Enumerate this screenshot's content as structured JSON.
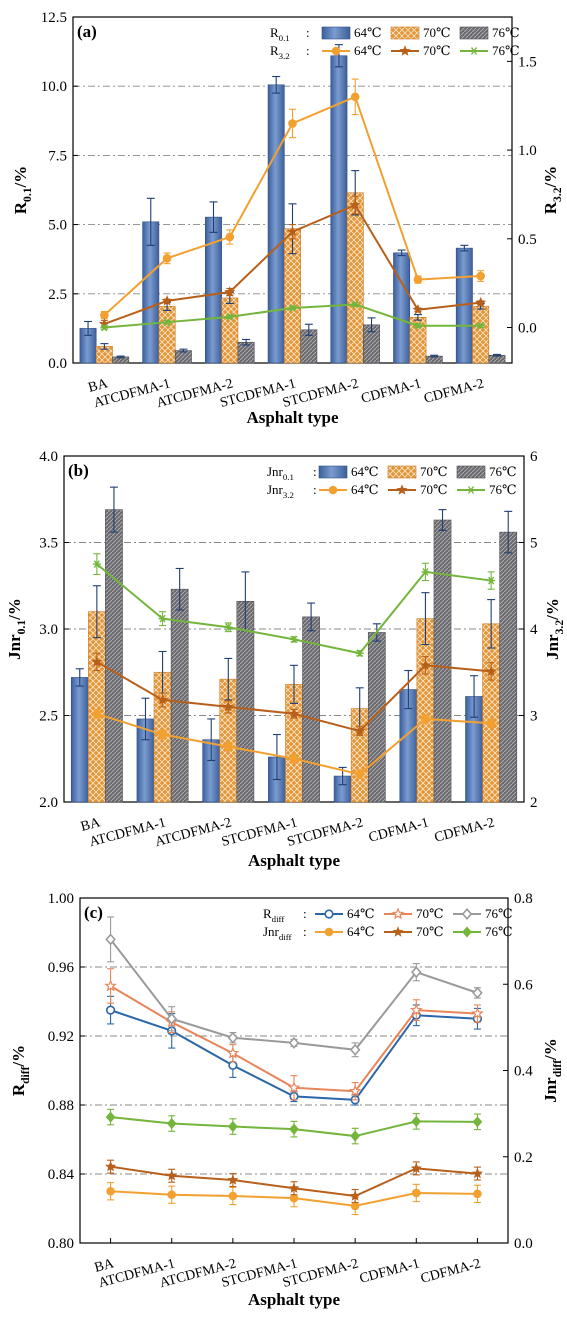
{
  "categories": [
    "BA",
    "ATCDFMA-1",
    "ATCDFMA-2",
    "STCDFMA-1",
    "STCDFMA-2",
    "CDFMA-1",
    "CDFMA-2"
  ],
  "colors": {
    "bar64": "#4f73b0",
    "bar70": "#e0912e",
    "bar76": "#6e6e72",
    "line64": "#f2a030",
    "line70": "#b8601b",
    "line76": "#74b53c",
    "rdiff64": "#2b66a8",
    "rdiff70": "#e8855a",
    "rdiff76": "#9a9a9a",
    "grid": "#888888"
  },
  "chart_data": [
    {
      "panel": "(a)",
      "type": "bar+line",
      "ylabel_main": "R",
      "ylabel_sub": "0.1",
      "ylabel_unit": "/%",
      "y2label_main": "R",
      "y2label_sub": "3.2",
      "y2label_unit": "/%",
      "xlabel": "Asphalt type",
      "ylim": [
        0,
        12.5
      ],
      "yticks": [
        0,
        2.5,
        5.0,
        7.5,
        10.0,
        12.5
      ],
      "ytick_labels": [
        "0.0",
        "2.5",
        "5.0",
        "7.5",
        "10.0",
        "12.5"
      ],
      "y2lim": [
        -0.2,
        1.75
      ],
      "y2ticks": [
        0.0,
        0.5,
        1.0,
        1.5
      ],
      "y2tick_labels": [
        "0.0",
        "0.5",
        "1.0",
        "1.5"
      ],
      "grid": "dash-dot horizontal",
      "legend_position": "top-right",
      "legend_bar_label_main": "R",
      "legend_bar_label_sub": "0.1",
      "legend_line_label_main": "R",
      "legend_line_label_sub": "3.2",
      "bars": [
        {
          "name": "64℃",
          "values": [
            1.25,
            5.1,
            5.27,
            10.05,
            11.1,
            3.98,
            4.15
          ],
          "errors": [
            0.25,
            0.85,
            0.55,
            0.3,
            0.4,
            0.1,
            0.1
          ]
        },
        {
          "name": "70℃",
          "values": [
            0.6,
            2.05,
            2.35,
            4.85,
            6.15,
            1.65,
            2.05
          ],
          "errors": [
            0.1,
            0.15,
            0.2,
            0.9,
            0.8,
            0.1,
            0.1
          ]
        },
        {
          "name": "76℃",
          "values": [
            0.22,
            0.45,
            0.75,
            1.2,
            1.38,
            0.25,
            0.28
          ],
          "errors": [
            0.03,
            0.05,
            0.1,
            0.2,
            0.25,
            0.03,
            0.03
          ]
        }
      ],
      "lines": [
        {
          "name": "64℃",
          "values": [
            0.07,
            0.39,
            0.51,
            1.15,
            1.3,
            0.27,
            0.29
          ],
          "errors": [
            0.02,
            0.03,
            0.04,
            0.08,
            0.1,
            0.02,
            0.03
          ]
        },
        {
          "name": "70℃",
          "values": [
            0.02,
            0.15,
            0.2,
            0.54,
            0.69,
            0.1,
            0.14
          ],
          "errors": [
            0.02,
            0.01,
            0.02,
            0.04,
            0.05,
            0.01,
            0.01
          ]
        },
        {
          "name": "76℃",
          "values": [
            0.0,
            0.03,
            0.06,
            0.11,
            0.13,
            0.01,
            0.01
          ],
          "errors": [
            0.01,
            0.01,
            0.01,
            0.01,
            0.01,
            0.01,
            0.01
          ]
        }
      ]
    },
    {
      "panel": "(b)",
      "type": "bar+line",
      "ylabel_main": "Jnr",
      "ylabel_sub": "0.1",
      "ylabel_unit": "/%",
      "y2label_main": "Jnr",
      "y2label_sub": "3.2",
      "y2label_unit": "/%",
      "xlabel": "Asphalt type",
      "ylim": [
        2.0,
        4.0
      ],
      "yticks": [
        2.0,
        2.5,
        3.0,
        3.5,
        4.0
      ],
      "ytick_labels": [
        "2.0",
        "2.5",
        "3.0",
        "3.5",
        "4.0"
      ],
      "y2lim": [
        2,
        6
      ],
      "y2ticks": [
        2,
        3,
        4,
        5,
        6
      ],
      "y2tick_labels": [
        "2",
        "3",
        "4",
        "5",
        "6"
      ],
      "grid": "dash-dot horizontal",
      "legend_position": "top-right",
      "legend_bar_label_main": "Jnr",
      "legend_bar_label_sub": "0.1",
      "legend_line_label_main": "Jnr",
      "legend_line_label_sub": "3.2",
      "bars": [
        {
          "name": "64℃",
          "values": [
            2.72,
            2.48,
            2.36,
            2.26,
            2.15,
            2.65,
            2.61
          ],
          "errors": [
            0.05,
            0.12,
            0.12,
            0.13,
            0.05,
            0.11,
            0.12
          ]
        },
        {
          "name": "70℃",
          "values": [
            3.1,
            2.75,
            2.71,
            2.68,
            2.54,
            3.06,
            3.03
          ],
          "errors": [
            0.15,
            0.12,
            0.12,
            0.11,
            0.12,
            0.15,
            0.14
          ]
        },
        {
          "name": "76℃",
          "values": [
            3.69,
            3.23,
            3.16,
            3.07,
            2.98,
            3.63,
            3.56
          ],
          "errors": [
            0.13,
            0.12,
            0.17,
            0.08,
            0.05,
            0.06,
            0.12
          ]
        }
      ],
      "lines": [
        {
          "name": "64℃",
          "values": [
            3.02,
            2.78,
            2.64,
            2.5,
            2.32,
            2.96,
            2.91
          ],
          "errors": [
            0.05,
            0.05,
            0.05,
            0.05,
            0.05,
            0.05,
            0.05
          ]
        },
        {
          "name": "70℃",
          "values": [
            3.62,
            3.18,
            3.1,
            3.02,
            2.82,
            3.58,
            3.51
          ],
          "errors": [
            0.1,
            0.08,
            0.07,
            0.05,
            0.05,
            0.1,
            0.1
          ]
        },
        {
          "name": "76℃",
          "values": [
            4.75,
            4.12,
            4.02,
            3.88,
            3.72,
            4.66,
            4.56
          ],
          "errors": [
            0.12,
            0.08,
            0.05,
            0.03,
            0.03,
            0.1,
            0.1
          ]
        }
      ]
    },
    {
      "panel": "(c)",
      "type": "line",
      "ylabel_main": "R",
      "ylabel_sub": "diff",
      "ylabel_unit": "/%",
      "y2label_main": "Jnr",
      "y2label_sub": "diff",
      "y2label_unit": "/%",
      "xlabel": "Asphalt type",
      "ylim": [
        0.8,
        1.0
      ],
      "yticks": [
        0.8,
        0.84,
        0.88,
        0.92,
        0.96,
        1.0
      ],
      "ytick_labels": [
        "0.80",
        "0.84",
        "0.88",
        "0.92",
        "0.96",
        "1.00"
      ],
      "y2lim": [
        0,
        0.8
      ],
      "y2ticks": [
        0,
        0.2,
        0.4,
        0.6,
        0.8
      ],
      "y2tick_labels": [
        "0.0",
        "0.2",
        "0.4",
        "0.6",
        "0.8"
      ],
      "grid": "dash-dot horizontal",
      "legend_position": "top-right",
      "legend_line1_label_main": "R",
      "legend_line1_label_sub": "diff",
      "legend_line2_label_main": "Jnr",
      "legend_line2_label_sub": "diff",
      "rdiff_lines": [
        {
          "name": "64℃",
          "values": [
            0.935,
            0.923,
            0.903,
            0.885,
            0.883,
            0.932,
            0.93
          ],
          "errors": [
            0.008,
            0.01,
            0.007,
            0.003,
            0.003,
            0.006,
            0.006
          ]
        },
        {
          "name": "70℃",
          "values": [
            0.949,
            0.928,
            0.91,
            0.89,
            0.888,
            0.935,
            0.933
          ],
          "errors": [
            0.01,
            0.006,
            0.005,
            0.007,
            0.005,
            0.006,
            0.005
          ]
        },
        {
          "name": "76℃",
          "values": [
            0.976,
            0.93,
            0.919,
            0.916,
            0.912,
            0.957,
            0.945
          ],
          "errors": [
            0.013,
            0.007,
            0.003,
            0.002,
            0.004,
            0.005,
            0.003
          ]
        }
      ],
      "jnrdiff_lines": [
        {
          "name": "64℃",
          "values": [
            0.12,
            0.112,
            0.109,
            0.104,
            0.086,
            0.116,
            0.114
          ],
          "errors": [
            0.02,
            0.02,
            0.02,
            0.02,
            0.02,
            0.02,
            0.02
          ]
        },
        {
          "name": "70℃",
          "values": [
            0.177,
            0.156,
            0.146,
            0.127,
            0.109,
            0.173,
            0.161
          ],
          "errors": [
            0.015,
            0.015,
            0.015,
            0.015,
            0.015,
            0.015,
            0.015
          ]
        },
        {
          "name": "76℃",
          "values": [
            0.292,
            0.277,
            0.27,
            0.264,
            0.248,
            0.282,
            0.281
          ],
          "errors": [
            0.018,
            0.018,
            0.018,
            0.018,
            0.018,
            0.018,
            0.018
          ]
        }
      ]
    }
  ]
}
